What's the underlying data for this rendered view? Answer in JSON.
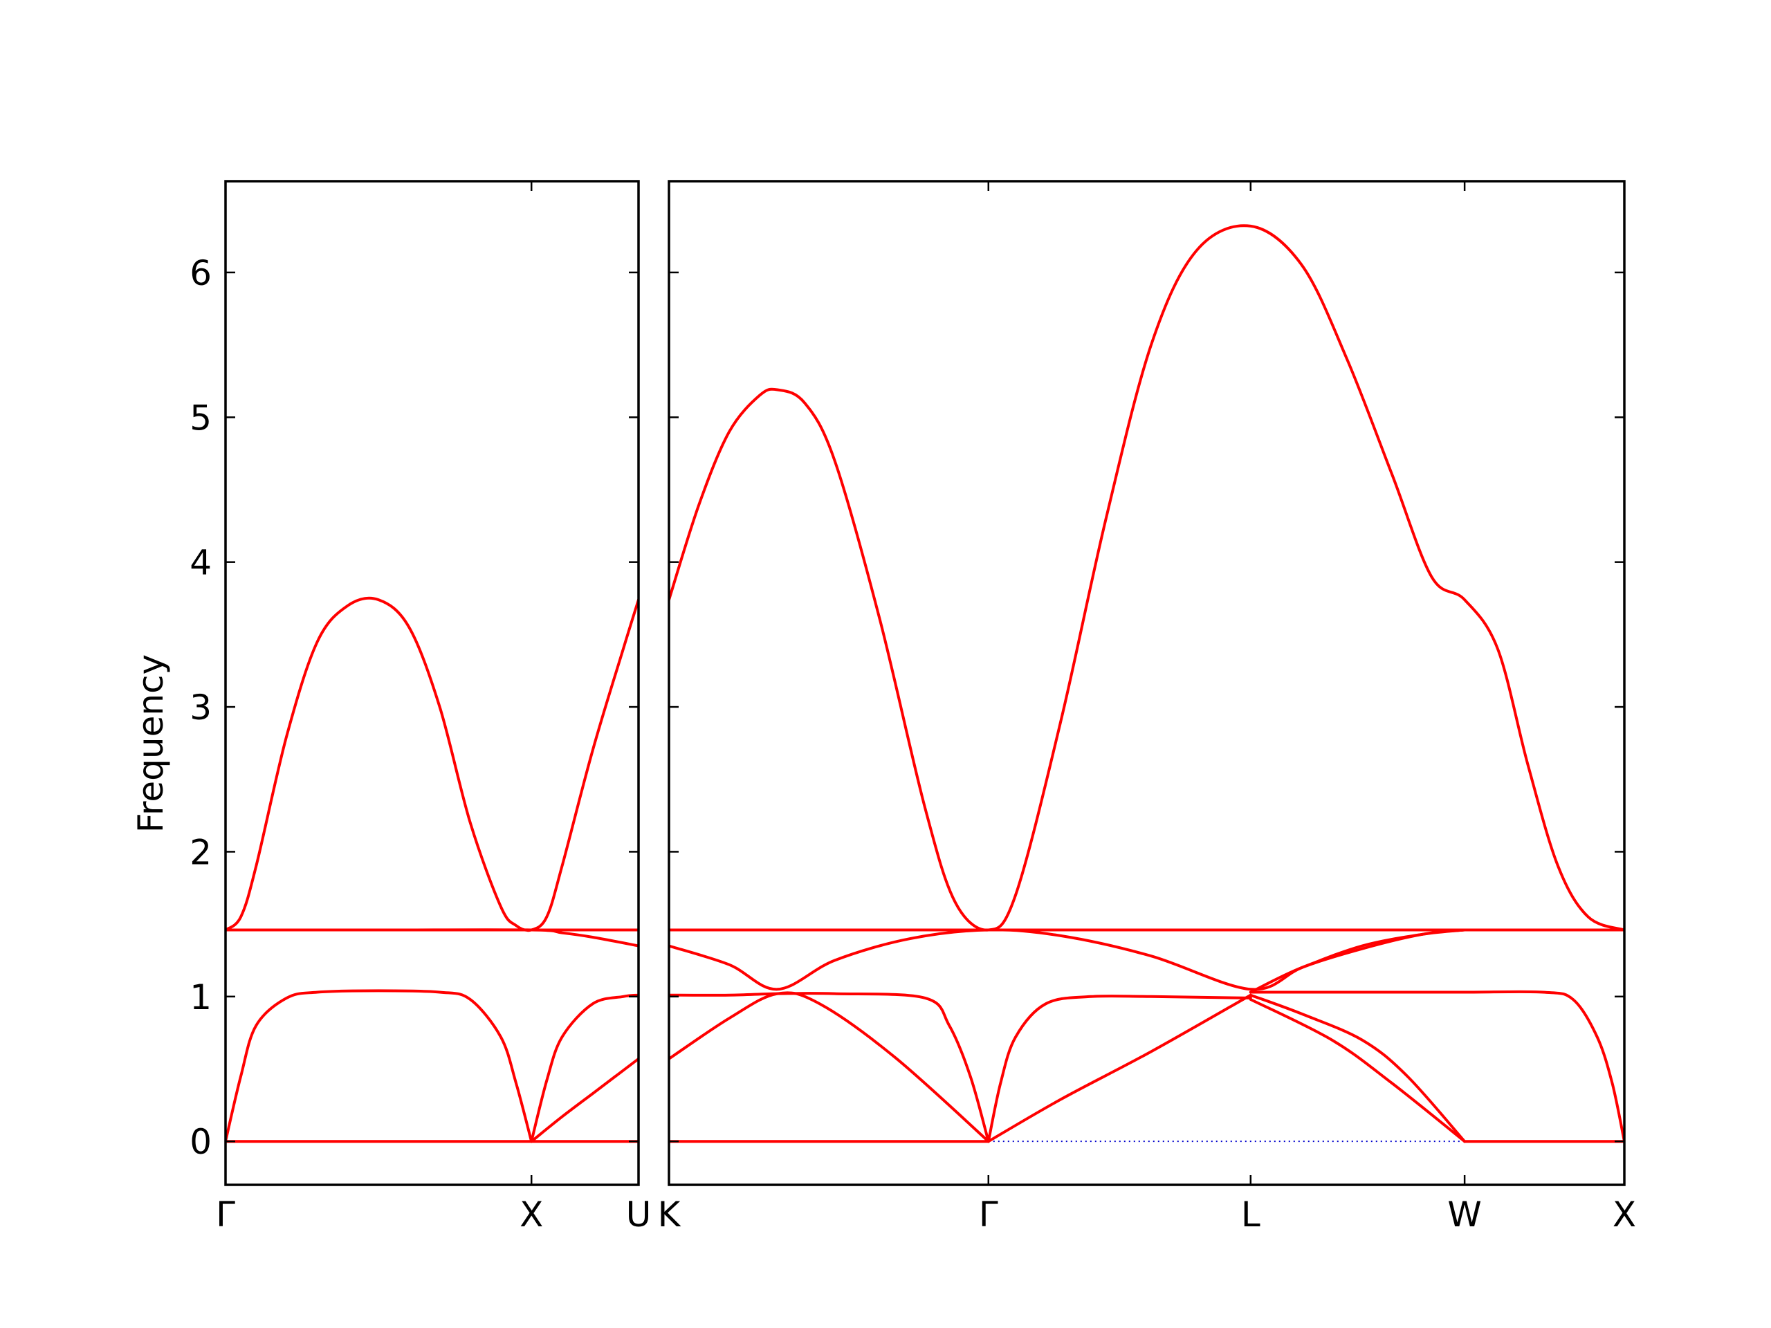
{
  "chart_data": {
    "type": "line",
    "title": "",
    "ylabel": "Frequency",
    "ylim": [
      -0.3,
      6.63
    ],
    "yticks": [
      "0",
      "1",
      "2",
      "3",
      "4",
      "5",
      "6"
    ],
    "colors": {
      "band": "#ff0000",
      "zero_reference": "#0000cc"
    },
    "grid": false,
    "legend": "none",
    "panels": [
      {
        "name": "panel-gamma-x-u",
        "xlim": [
          0,
          1.35
        ],
        "xticks": [
          {
            "x": 0,
            "label": "Γ"
          },
          {
            "x": 1.0,
            "label": "X"
          },
          {
            "x": 1.35,
            "label": "U"
          }
        ],
        "series": [
          {
            "values": [
              [
                0,
                1.46
              ],
              [
                0.05,
                1.55
              ],
              [
                0.1,
                1.9
              ],
              [
                0.2,
                2.8
              ],
              [
                0.3,
                3.45
              ],
              [
                0.4,
                3.7
              ],
              [
                0.5,
                3.74
              ],
              [
                0.6,
                3.55
              ],
              [
                0.7,
                3.0
              ],
              [
                0.8,
                2.2
              ],
              [
                0.9,
                1.62
              ],
              [
                0.95,
                1.49
              ],
              [
                1.0,
                1.46
              ],
              [
                1.05,
                1.55
              ],
              [
                1.1,
                1.9
              ],
              [
                1.2,
                2.7
              ],
              [
                1.3,
                3.4
              ],
              [
                1.35,
                3.74
              ]
            ]
          },
          {
            "values": [
              [
                0,
                1.46
              ],
              [
                0.5,
                1.46
              ],
              [
                1.0,
                1.46
              ],
              [
                1.35,
                1.46
              ]
            ]
          },
          {
            "values": [
              [
                0,
                1.46
              ],
              [
                0.5,
                1.46
              ],
              [
                1.0,
                1.46
              ],
              [
                1.1,
                1.44
              ],
              [
                1.2,
                1.41
              ],
              [
                1.35,
                1.35
              ]
            ]
          },
          {
            "values": [
              [
                0,
                0
              ],
              [
                0.05,
                0.45
              ],
              [
                0.1,
                0.8
              ],
              [
                0.2,
                0.99
              ],
              [
                0.3,
                1.03
              ],
              [
                0.5,
                1.04
              ],
              [
                0.7,
                1.03
              ],
              [
                0.8,
                0.98
              ],
              [
                0.9,
                0.72
              ],
              [
                0.95,
                0.4
              ],
              [
                1.0,
                0
              ]
            ]
          },
          {
            "values": [
              [
                0,
                0
              ],
              [
                0.5,
                0
              ],
              [
                1.0,
                0
              ],
              [
                1.35,
                0
              ]
            ]
          },
          {
            "values": [
              [
                1.0,
                0
              ],
              [
                1.05,
                0.42
              ],
              [
                1.1,
                0.72
              ],
              [
                1.2,
                0.95
              ],
              [
                1.3,
                1.0
              ],
              [
                1.35,
                1.01
              ]
            ]
          },
          {
            "values": [
              [
                1.0,
                0
              ],
              [
                1.1,
                0.17
              ],
              [
                1.2,
                0.33
              ],
              [
                1.35,
                0.57
              ]
            ]
          }
        ]
      },
      {
        "name": "panel-k-gamma-l-w-x",
        "xlim": [
          0,
          3.17
        ],
        "xticks": [
          {
            "x": 0,
            "label": "K"
          },
          {
            "x": 1.06,
            "label": "Γ"
          },
          {
            "x": 1.93,
            "label": "L"
          },
          {
            "x": 2.64,
            "label": "W"
          },
          {
            "x": 3.17,
            "label": "X"
          }
        ],
        "series": [
          {
            "values": [
              [
                0,
                3.74
              ],
              [
                0.1,
                4.4
              ],
              [
                0.2,
                4.9
              ],
              [
                0.3,
                5.15
              ],
              [
                0.36,
                5.19
              ],
              [
                0.45,
                5.1
              ],
              [
                0.55,
                4.7
              ],
              [
                0.7,
                3.6
              ],
              [
                0.85,
                2.3
              ],
              [
                0.95,
                1.65
              ],
              [
                1.06,
                1.46
              ],
              [
                1.15,
                1.7
              ],
              [
                1.3,
                2.9
              ],
              [
                1.45,
                4.3
              ],
              [
                1.6,
                5.5
              ],
              [
                1.75,
                6.15
              ],
              [
                1.93,
                6.32
              ],
              [
                2.1,
                6.05
              ],
              [
                2.25,
                5.4
              ],
              [
                2.4,
                4.6
              ],
              [
                2.53,
                3.9
              ],
              [
                2.64,
                3.74
              ],
              [
                2.75,
                3.4
              ],
              [
                2.85,
                2.6
              ],
              [
                2.95,
                1.9
              ],
              [
                3.05,
                1.55
              ],
              [
                3.17,
                1.46
              ]
            ]
          },
          {
            "values": [
              [
                0,
                1.46
              ],
              [
                0.5,
                1.46
              ],
              [
                1.06,
                1.46
              ],
              [
                1.5,
                1.46
              ],
              [
                2.0,
                1.46
              ],
              [
                2.64,
                1.46
              ],
              [
                3.17,
                1.46
              ]
            ]
          },
          {
            "values": [
              [
                0,
                1.35
              ],
              [
                0.2,
                1.22
              ],
              [
                0.36,
                1.05
              ],
              [
                0.55,
                1.25
              ],
              [
                0.8,
                1.4
              ],
              [
                1.06,
                1.46
              ],
              [
                1.3,
                1.42
              ],
              [
                1.6,
                1.28
              ],
              [
                1.93,
                1.05
              ],
              [
                2.1,
                1.2
              ],
              [
                2.3,
                1.35
              ],
              [
                2.5,
                1.43
              ],
              [
                2.64,
                1.46
              ]
            ]
          },
          {
            "values": [
              [
                0,
                1.01
              ],
              [
                0.2,
                1.01
              ],
              [
                0.36,
                1.02
              ],
              [
                0.55,
                1.02
              ],
              [
                0.85,
                0.99
              ],
              [
                0.93,
                0.8
              ],
              [
                1.0,
                0.45
              ],
              [
                1.06,
                0
              ]
            ]
          },
          {
            "values": [
              [
                0,
                0.57
              ],
              [
                0.2,
                0.85
              ],
              [
                0.36,
                1.02
              ],
              [
                0.5,
                0.95
              ],
              [
                0.75,
                0.58
              ],
              [
                1.06,
                0
              ]
            ]
          },
          {
            "values": [
              [
                0,
                0
              ],
              [
                0.5,
                0
              ],
              [
                1.06,
                0
              ]
            ]
          },
          {
            "values": [
              [
                1.06,
                0
              ],
              [
                1.1,
                0.4
              ],
              [
                1.15,
                0.72
              ],
              [
                1.25,
                0.95
              ],
              [
                1.4,
                1.0
              ],
              [
                1.6,
                1.0
              ],
              [
                1.93,
                0.99
              ]
            ]
          },
          {
            "values": [
              [
                1.06,
                0
              ],
              [
                1.3,
                0.29
              ],
              [
                1.6,
                0.62
              ],
              [
                1.93,
                1.01
              ]
            ]
          },
          {
            "values": [
              [
                1.93,
                1.03
              ],
              [
                2.1,
                1.2
              ],
              [
                2.3,
                1.33
              ],
              [
                2.5,
                1.43
              ],
              [
                2.64,
                1.46
              ]
            ]
          },
          {
            "values": [
              [
                1.93,
                1.03
              ],
              [
                2.3,
                1.03
              ],
              [
                2.64,
                1.03
              ],
              [
                2.9,
                1.03
              ],
              [
                3.0,
                0.98
              ],
              [
                3.08,
                0.72
              ],
              [
                3.13,
                0.4
              ],
              [
                3.17,
                0
              ]
            ]
          },
          {
            "values": [
              [
                1.93,
                1.01
              ],
              [
                2.1,
                0.88
              ],
              [
                2.3,
                0.7
              ],
              [
                2.45,
                0.45
              ],
              [
                2.64,
                0
              ]
            ]
          },
          {
            "values": [
              [
                1.93,
                0.98
              ],
              [
                2.2,
                0.7
              ],
              [
                2.4,
                0.4
              ],
              [
                2.64,
                0
              ]
            ]
          },
          {
            "values": [
              [
                2.64,
                0
              ],
              [
                2.9,
                0
              ],
              [
                3.17,
                0
              ]
            ]
          }
        ],
        "zero_reference": {
          "from": 1.06,
          "to": 2.64,
          "y": 0
        }
      }
    ]
  }
}
